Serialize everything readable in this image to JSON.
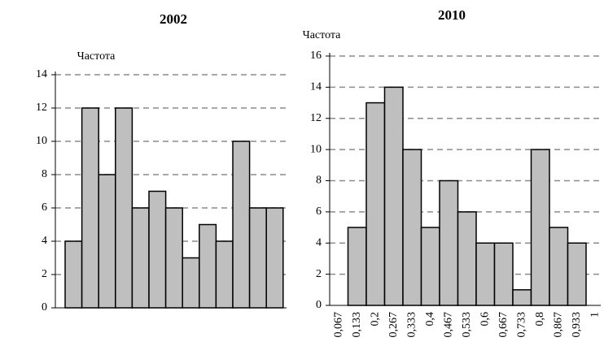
{
  "chart_data": [
    {
      "type": "bar",
      "title": "2002",
      "y_label": "Частота",
      "categories": [
        null,
        null,
        null,
        null,
        null,
        null,
        null,
        null,
        null,
        null,
        null,
        null,
        null
      ],
      "values": [
        4,
        12,
        8,
        12,
        6,
        7,
        6,
        3,
        5,
        4,
        10,
        6,
        6
      ],
      "color": "#bfbfbf",
      "ylim": [
        0,
        14
      ],
      "yticks": [
        0,
        2,
        4,
        6,
        8,
        10,
        12,
        14
      ],
      "grid": true
    },
    {
      "type": "bar",
      "title": "2010",
      "y_label": "Частота",
      "categories": [
        "0,067",
        "0,133",
        "0,2",
        "0,267",
        "0,333",
        "0,4",
        "0,467",
        "0,533",
        "0,6",
        "0,667",
        "0,733",
        "0,8",
        "0,867",
        "0,933",
        "1"
      ],
      "values": [
        null,
        5,
        13,
        14,
        10,
        5,
        8,
        6,
        4,
        4,
        1,
        10,
        5,
        4,
        null
      ],
      "color": "#bfbfbf",
      "ylim": [
        0,
        16
      ],
      "yticks": [
        0,
        2,
        4,
        6,
        8,
        10,
        12,
        14,
        16
      ],
      "grid": true
    }
  ]
}
